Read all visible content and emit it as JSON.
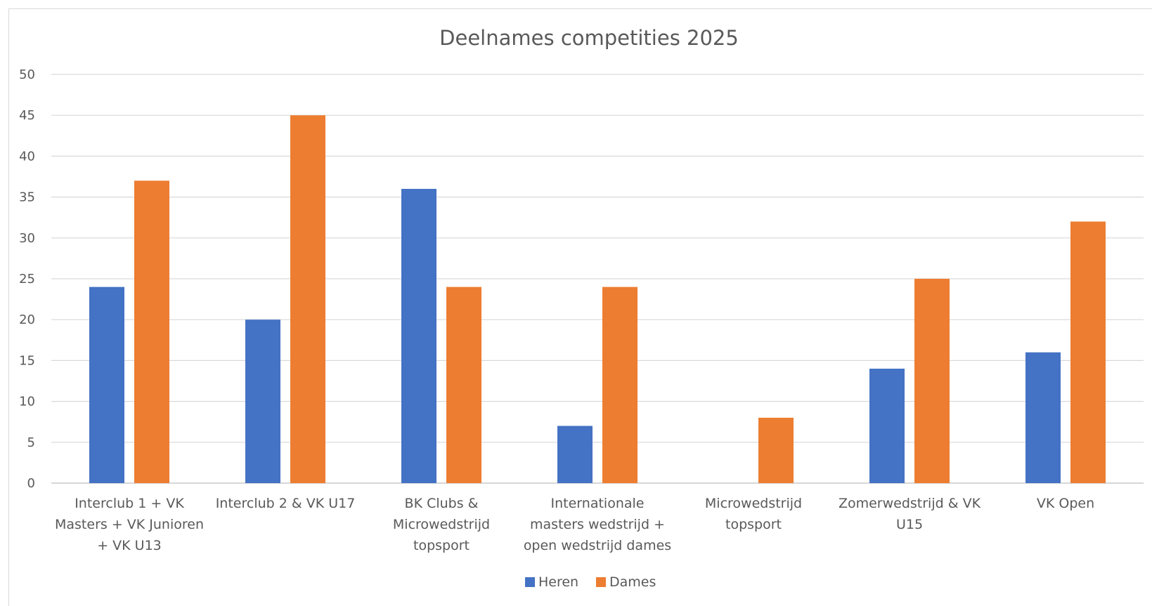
{
  "chart_data": {
    "type": "bar",
    "title": "Deelnames competities 2025",
    "xlabel": "",
    "ylabel": "",
    "ylim": [
      0,
      50
    ],
    "yticks": [
      0,
      5,
      10,
      15,
      20,
      25,
      30,
      35,
      40,
      45,
      50
    ],
    "grid": true,
    "legend_position": "bottom",
    "categories": [
      [
        "Interclub 1 + VK",
        "Masters + VK Junioren",
        "+ VK U13"
      ],
      [
        "Interclub 2 & VK U17"
      ],
      [
        "BK Clubs &",
        "Microwedstrijd",
        "topsport"
      ],
      [
        "Internationale",
        "masters wedstrijd +",
        "open wedstrijd dames"
      ],
      [
        "Microwedstrijd",
        "topsport"
      ],
      [
        "Zomerwedstrijd & VK",
        "U15"
      ],
      [
        "VK Open"
      ]
    ],
    "series": [
      {
        "name": "Heren",
        "color": "#4472C4",
        "values": [
          24,
          20,
          36,
          7,
          0,
          14,
          16
        ]
      },
      {
        "name": "Dames",
        "color": "#ED7D31",
        "values": [
          37,
          45,
          24,
          24,
          8,
          25,
          32
        ]
      }
    ]
  }
}
